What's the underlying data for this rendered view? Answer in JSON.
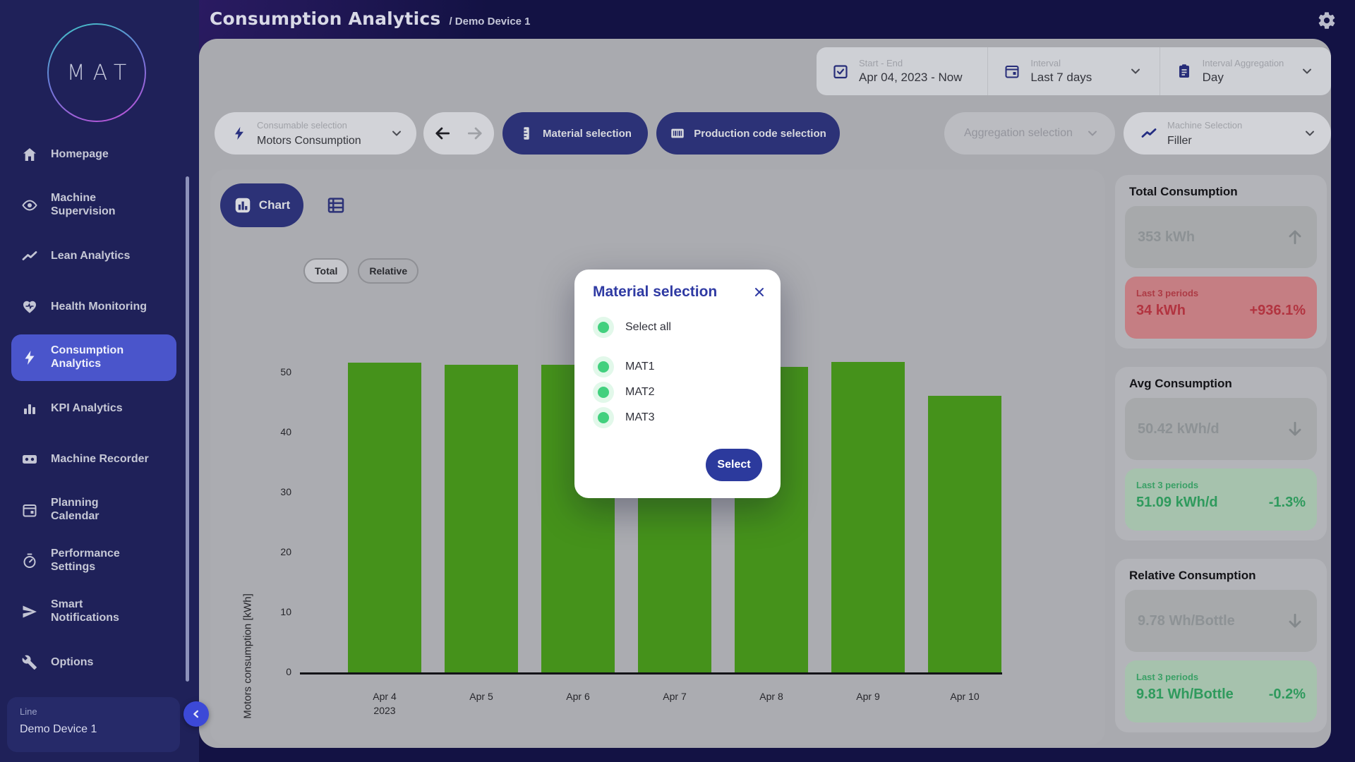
{
  "header": {
    "title": "Consumption Analytics",
    "breadcrumb": "/ Demo Device 1",
    "gear_icon": "gear-icon"
  },
  "sidebar": {
    "logo_text": "MAT",
    "items": [
      {
        "label": "Homepage",
        "icon": "home",
        "active": false
      },
      {
        "label": "Machine Supervision",
        "icon": "eye",
        "active": false
      },
      {
        "label": "Lean Analytics",
        "icon": "trend",
        "active": false
      },
      {
        "label": "Health Monitoring",
        "icon": "heart",
        "active": false
      },
      {
        "label": "Consumption Analytics",
        "icon": "bolt",
        "active": true
      },
      {
        "label": "KPI Analytics",
        "icon": "bars",
        "active": false
      },
      {
        "label": "Machine Recorder",
        "icon": "recorder",
        "active": false
      },
      {
        "label": "Planning Calendar",
        "icon": "calendar",
        "active": false
      },
      {
        "label": "Performance Settings",
        "icon": "gauge",
        "active": false
      },
      {
        "label": "Smart Notifications",
        "icon": "send",
        "active": false
      },
      {
        "label": "Options",
        "icon": "wrench",
        "active": false
      }
    ],
    "device": {
      "label": "Line",
      "value": "Demo Device 1"
    }
  },
  "filter_bar": {
    "start_end": {
      "label": "Start - End",
      "value": "Apr 04, 2023 - Now",
      "icon": "calendar-check-icon"
    },
    "interval": {
      "label": "Interval",
      "value": "Last 7 days",
      "icon": "calendar-icon"
    },
    "interval_aggregation": {
      "label": "Interval Aggregation",
      "value": "Day",
      "icon": "clipboard-icon"
    }
  },
  "toolbar": {
    "consumable": {
      "label": "Consumable selection",
      "value": "Motors Consumption",
      "icon": "bolt-icon"
    },
    "material_button": "Material selection",
    "production_button": "Production code selection",
    "aggregation_placeholder": "Aggregation selection",
    "machine": {
      "label": "Machine Selection",
      "value": "Filler",
      "icon": "trend-icon"
    }
  },
  "view": {
    "chart_button": "Chart"
  },
  "mode_toggle": {
    "options": [
      "Total",
      "Relative"
    ],
    "selected": "Total"
  },
  "chart_data": {
    "type": "bar",
    "x_labels": [
      [
        "Apr 4",
        "2023"
      ],
      [
        "Apr 5"
      ],
      [
        "Apr 6"
      ],
      [
        "Apr 7"
      ],
      [
        "Apr 8"
      ],
      [
        "Apr 9"
      ],
      [
        "Apr 10"
      ]
    ],
    "values": [
      51.7,
      51.3,
      51.3,
      50.0,
      51.0,
      51.8,
      46.1
    ],
    "ylabel": "Motors consumption [kWh]",
    "xlabel": "",
    "yticks": [
      0,
      10,
      20,
      30,
      40,
      50
    ],
    "ylim": [
      0,
      52
    ],
    "grid": false,
    "legend": false,
    "bar_color": "#45921b"
  },
  "stats": [
    {
      "title": "Total Consumption",
      "value": "353 kWh",
      "trend": "up",
      "period_label": "Last 3 periods",
      "period_value": "34 kWh",
      "delta": "+936.1%",
      "tone": "neg"
    },
    {
      "title": "Avg Consumption",
      "value": "50.42 kWh/d",
      "trend": "down",
      "period_label": "Last 3 periods",
      "period_value": "51.09 kWh/d",
      "delta": "-1.3%",
      "tone": "pos"
    },
    {
      "title": "Relative Consumption",
      "value": "9.78 Wh/Bottle",
      "trend": "down",
      "period_label": "Last 3 periods",
      "period_value": "9.81 Wh/Bottle",
      "delta": "-0.2%",
      "tone": "pos"
    }
  ],
  "modal": {
    "title": "Material selection",
    "select_all": "Select all",
    "options": [
      "MAT1",
      "MAT2",
      "MAT3"
    ],
    "submit": "Select",
    "close_icon": "close-icon",
    "radio_icon": "radio-selected-icon"
  },
  "colors": {
    "accent_indigo": "#2f3aa3",
    "sidebar_active": "#4a55cb",
    "bar_green": "#45921b",
    "radio_green": "#42d07e",
    "negative_red": "#b23440",
    "positive_green": "#2f9a5d"
  }
}
